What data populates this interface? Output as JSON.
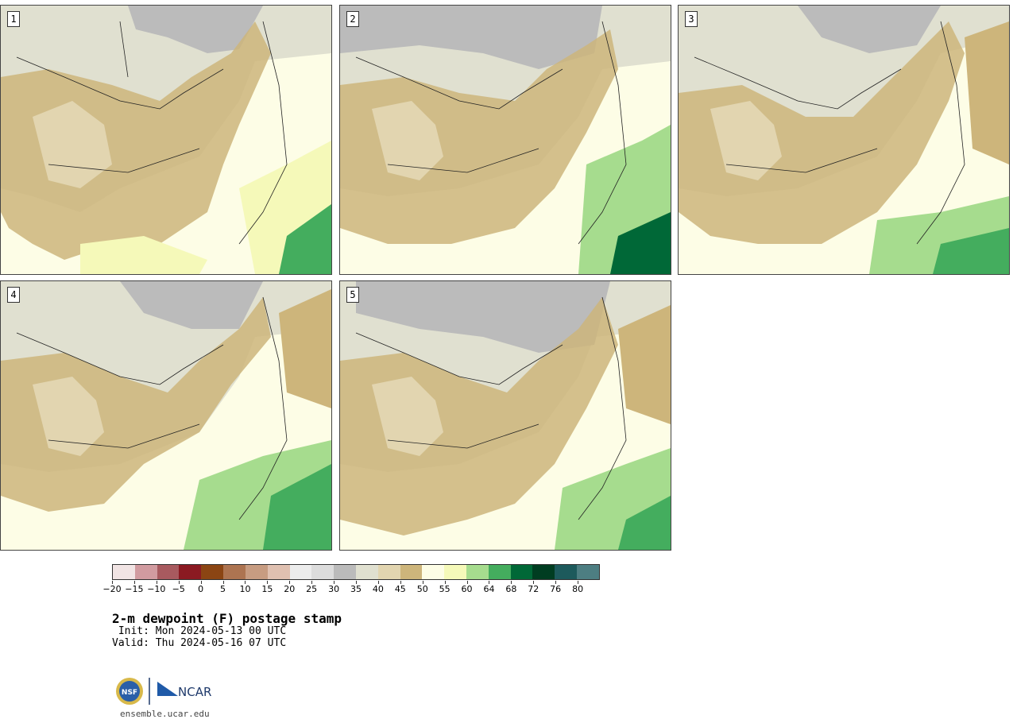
{
  "panels": [
    {
      "label": "1"
    },
    {
      "label": "2"
    },
    {
      "label": "3"
    },
    {
      "label": "4"
    },
    {
      "label": "5"
    }
  ],
  "colorbar": {
    "colors": [
      "#f1e4e4",
      "#d19ba0",
      "#a85a5f",
      "#8b1a22",
      "#8b4513",
      "#ad7451",
      "#c79c81",
      "#dfc0b0",
      "#ececec",
      "#dcdcdc",
      "#bbbbbb",
      "#e0e0d0",
      "#e2d5b0",
      "#cdb57b",
      "#fdfde6",
      "#f5f9b9",
      "#a6dc8e",
      "#44ad5e",
      "#006837",
      "#003d21",
      "#1d5a5c",
      "#4d7e82"
    ],
    "ticks": [
      "−20",
      "−15",
      "−10",
      "−5",
      "0",
      "5",
      "10",
      "15",
      "20",
      "25",
      "30",
      "35",
      "40",
      "45",
      "50",
      "55",
      "60",
      "64",
      "68",
      "72",
      "76",
      "80"
    ]
  },
  "title": "2-m dewpoint (F) postage stamp",
  "init": " Init: Mon 2024-05-13 00 UTC",
  "valid": "Valid: Thu 2024-05-16 07 UTC",
  "logo": {
    "nsf_text": "NSF",
    "ncar_text": "NCAR"
  },
  "footer_url": "ensemble.ucar.edu"
}
